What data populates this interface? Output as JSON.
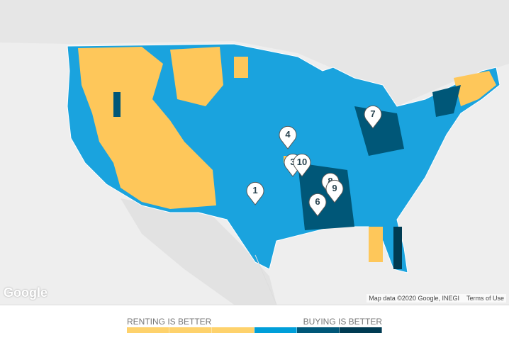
{
  "map": {
    "attribution": "Map data ©2020 Google, INEGI",
    "terms": "Terms of Use",
    "logo": "Google",
    "markers": [
      {
        "label": "1"
      },
      {
        "label": "3"
      },
      {
        "label": "4"
      },
      {
        "label": "6"
      },
      {
        "label": "7"
      },
      {
        "label": "8"
      },
      {
        "label": "9"
      },
      {
        "label": "10"
      }
    ]
  },
  "legend": {
    "left_label": "RENTING IS BETTER",
    "right_label": "BUYING IS BETTER",
    "colors": [
      "#fed26c",
      "#fed26c",
      "#fed26c",
      "#009fd9",
      "#005778",
      "#003b52"
    ]
  }
}
